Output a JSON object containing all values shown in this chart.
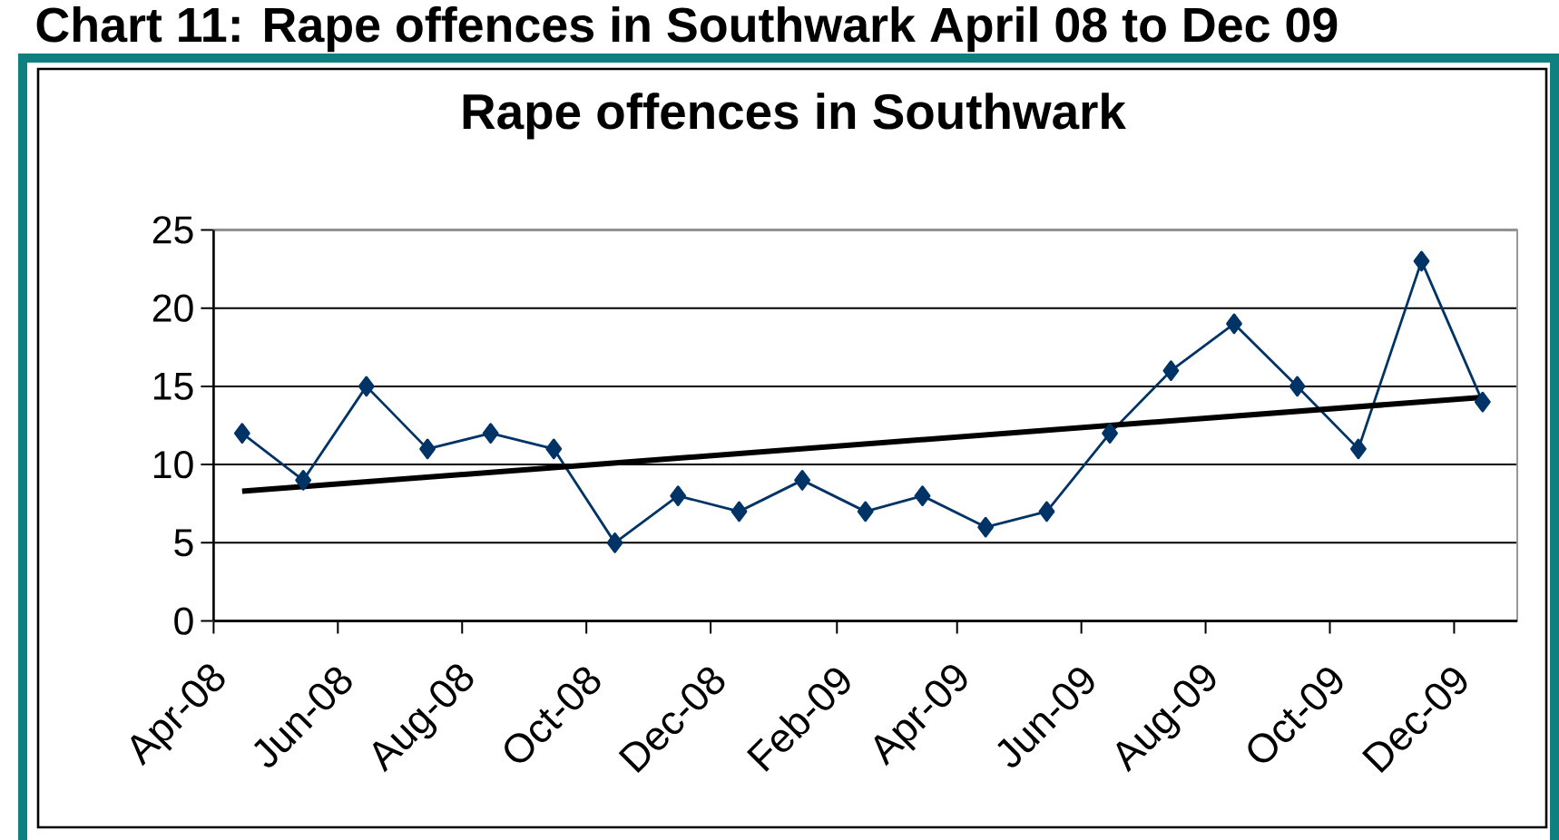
{
  "chart_data": {
    "type": "line",
    "title": "Chart 11: Rape offences in Southwark April 08 to Dec 09",
    "subtitle": "Rape offences in Southwark",
    "x": [
      "2008-04-15",
      "2008-05-15",
      "2008-06-15",
      "2008-07-15",
      "2008-08-15",
      "2008-09-15",
      "2008-10-15",
      "2008-11-15",
      "2008-12-15",
      "2009-01-15",
      "2009-02-15",
      "2009-03-15",
      "2009-04-15",
      "2009-05-15",
      "2009-06-15",
      "2009-07-15",
      "2009-08-15",
      "2009-09-15",
      "2009-10-15",
      "2009-11-15",
      "2009-12-15"
    ],
    "series": [
      {
        "color": "#003366",
        "values": [
          12,
          9,
          15,
          11,
          12,
          11,
          5,
          8,
          7,
          9,
          7,
          8,
          6,
          7,
          12,
          16,
          19,
          15,
          11,
          23,
          14
        ]
      },
      {
        "type": "line",
        "x": [
          "2008-04-15",
          "2009-12-15"
        ],
        "values": [
          8.3,
          14.3
        ],
        "color": "#000000",
        "marker": "none"
      }
    ],
    "xlim": [
      "2008-04-01",
      "2010-01-01"
    ],
    "xticks": [
      {
        "value": "2008-04-01",
        "label": "Apr-08"
      },
      {
        "value": "2008-06-01",
        "label": "Jun-08"
      },
      {
        "value": "2008-08-01",
        "label": "Aug-08"
      },
      {
        "value": "2008-10-01",
        "label": "Oct-08"
      },
      {
        "value": "2008-12-01",
        "label": "Dec-08"
      },
      {
        "value": "2009-02-01",
        "label": "Feb-09"
      },
      {
        "value": "2009-04-01",
        "label": "Apr-09"
      },
      {
        "value": "2009-06-01",
        "label": "Jun-09"
      },
      {
        "value": "2009-08-01",
        "label": "Aug-09"
      },
      {
        "value": "2009-10-01",
        "label": "Oct-09"
      },
      {
        "value": "2009-12-01",
        "label": "Dec-09"
      }
    ],
    "ylim": [
      0,
      25
    ],
    "yticks": [
      0,
      5,
      10,
      15,
      20,
      25
    ],
    "grid": "y",
    "marker": "diamond"
  }
}
